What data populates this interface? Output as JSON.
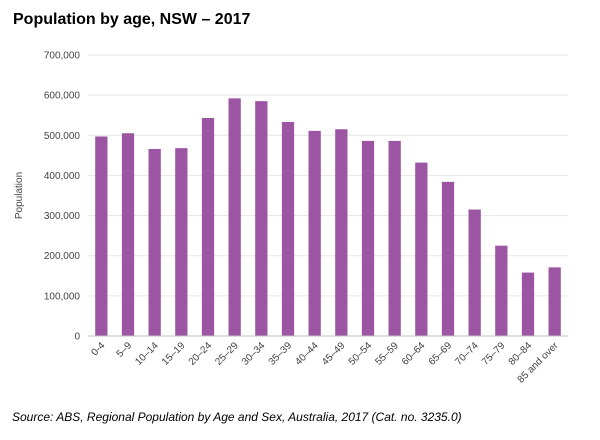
{
  "chart_data": {
    "type": "bar",
    "title": "Population by age, NSW – 2017",
    "xlabel": "",
    "ylabel": "Population",
    "ylim": [
      0,
      700000
    ],
    "yticks": [
      0,
      100000,
      200000,
      300000,
      400000,
      500000,
      600000,
      700000
    ],
    "ytick_labels": [
      "0",
      "100,000",
      "200,000",
      "300,000",
      "400,000",
      "500,000",
      "600,000",
      "700,000"
    ],
    "grid": true,
    "legend": "none",
    "bar_color": "#9c55a3",
    "categories": [
      "0-4",
      "5–9",
      "10–14",
      "15–19",
      "20–24",
      "25–29",
      "30–34",
      "35–39",
      "40–44",
      "45–49",
      "50–54",
      "55–59",
      "60–64",
      "65–69",
      "70–74",
      "75–79",
      "80–84",
      "85 and over"
    ],
    "values": [
      497000,
      505000,
      466000,
      468000,
      543000,
      592000,
      585000,
      533000,
      511000,
      515000,
      486000,
      486000,
      432000,
      384000,
      315000,
      225000,
      158000,
      171000
    ]
  },
  "source": "Source:  ABS, Regional Population by Age and Sex, Australia, 2017 (Cat. no. 3235.0)"
}
